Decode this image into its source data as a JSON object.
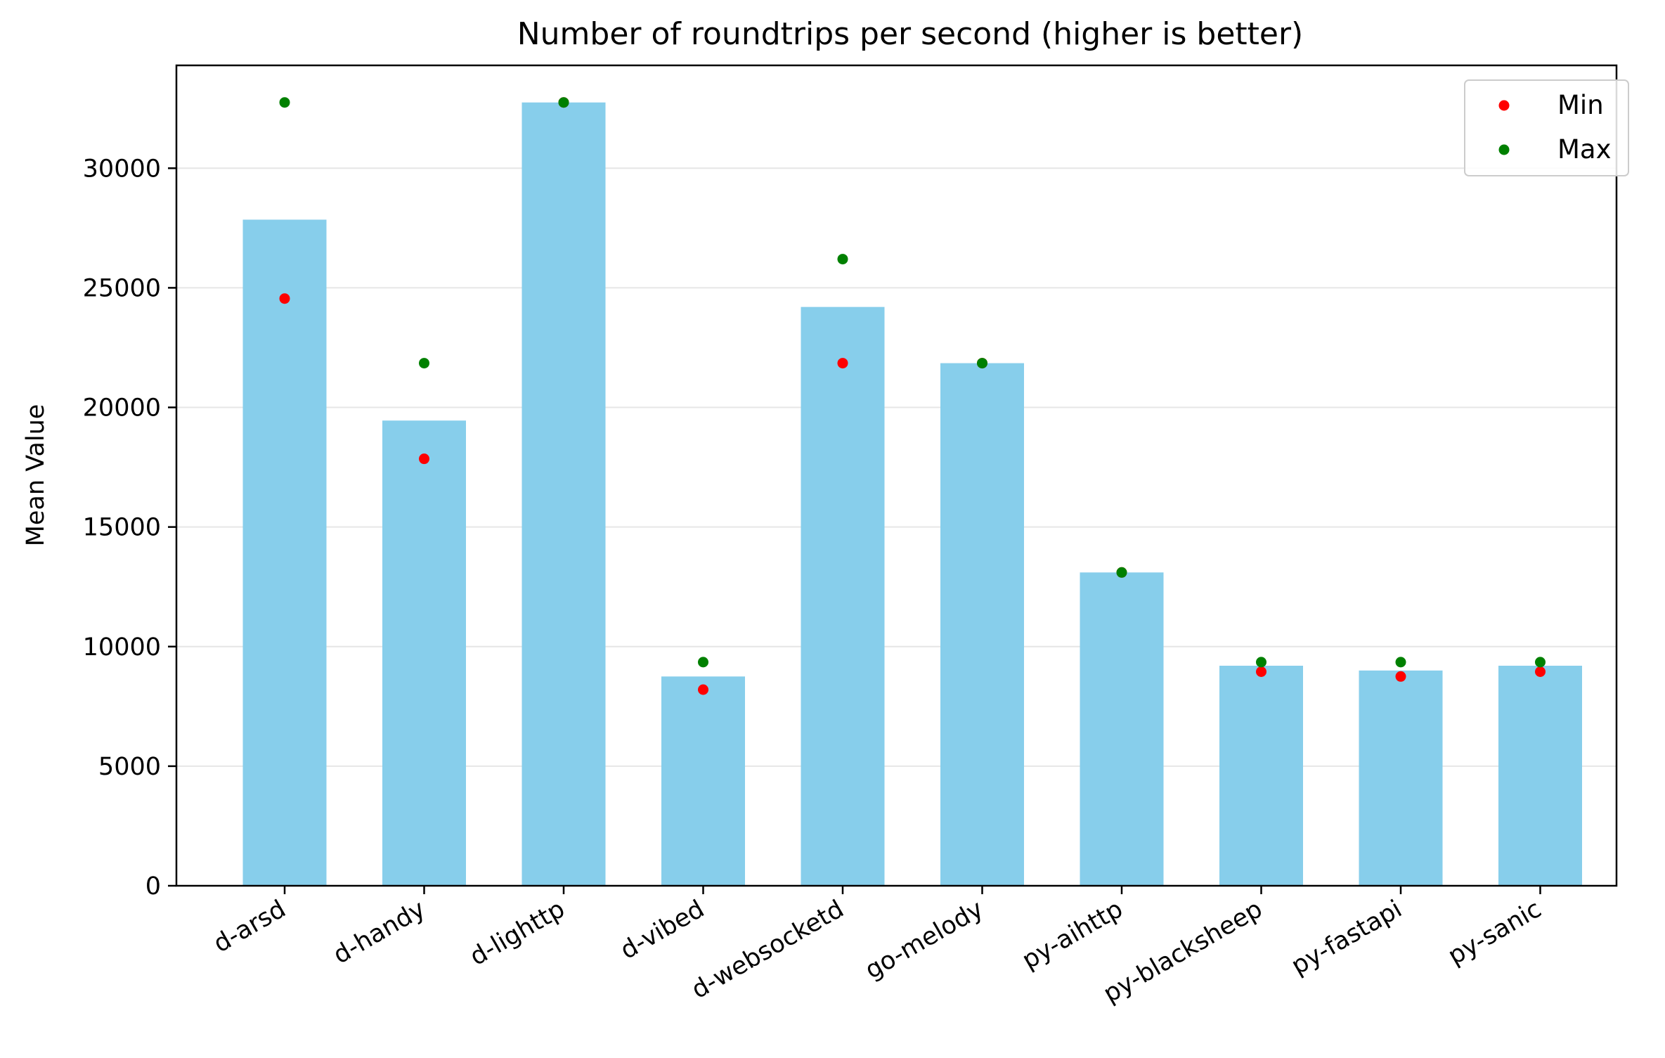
{
  "chart_data": {
    "type": "bar",
    "title": "Number of roundtrips per second (higher is better)",
    "xlabel": "",
    "ylabel": "Mean Value",
    "categories": [
      "d-arsd",
      "d-handy",
      "d-lighttp",
      "d-vibed",
      "d-websocketd",
      "go-melody",
      "py-aihttp",
      "py-blacksheep",
      "py-fastapi",
      "py-sanic"
    ],
    "series": [
      {
        "name": "Mean",
        "type": "bar",
        "color": "#87ceeb",
        "values": [
          27850,
          19450,
          32750,
          8750,
          24200,
          21850,
          13100,
          9200,
          9000,
          9200
        ]
      },
      {
        "name": "Min",
        "type": "scatter",
        "color": "#ff0000",
        "values": [
          24550,
          17850,
          32750,
          8200,
          21850,
          21850,
          13100,
          8950,
          8750,
          8950
        ]
      },
      {
        "name": "Max",
        "type": "scatter",
        "color": "#008000",
        "values": [
          32750,
          21850,
          32750,
          9350,
          26200,
          21850,
          13100,
          9350,
          9350,
          9350
        ]
      }
    ],
    "ylim": [
      0,
      34300
    ],
    "yticks": [
      0,
      5000,
      10000,
      15000,
      20000,
      25000,
      30000
    ],
    "grid": {
      "y": true,
      "x": false
    },
    "legend": {
      "placement": "top-right",
      "entries": [
        "Min",
        "Max"
      ]
    }
  }
}
